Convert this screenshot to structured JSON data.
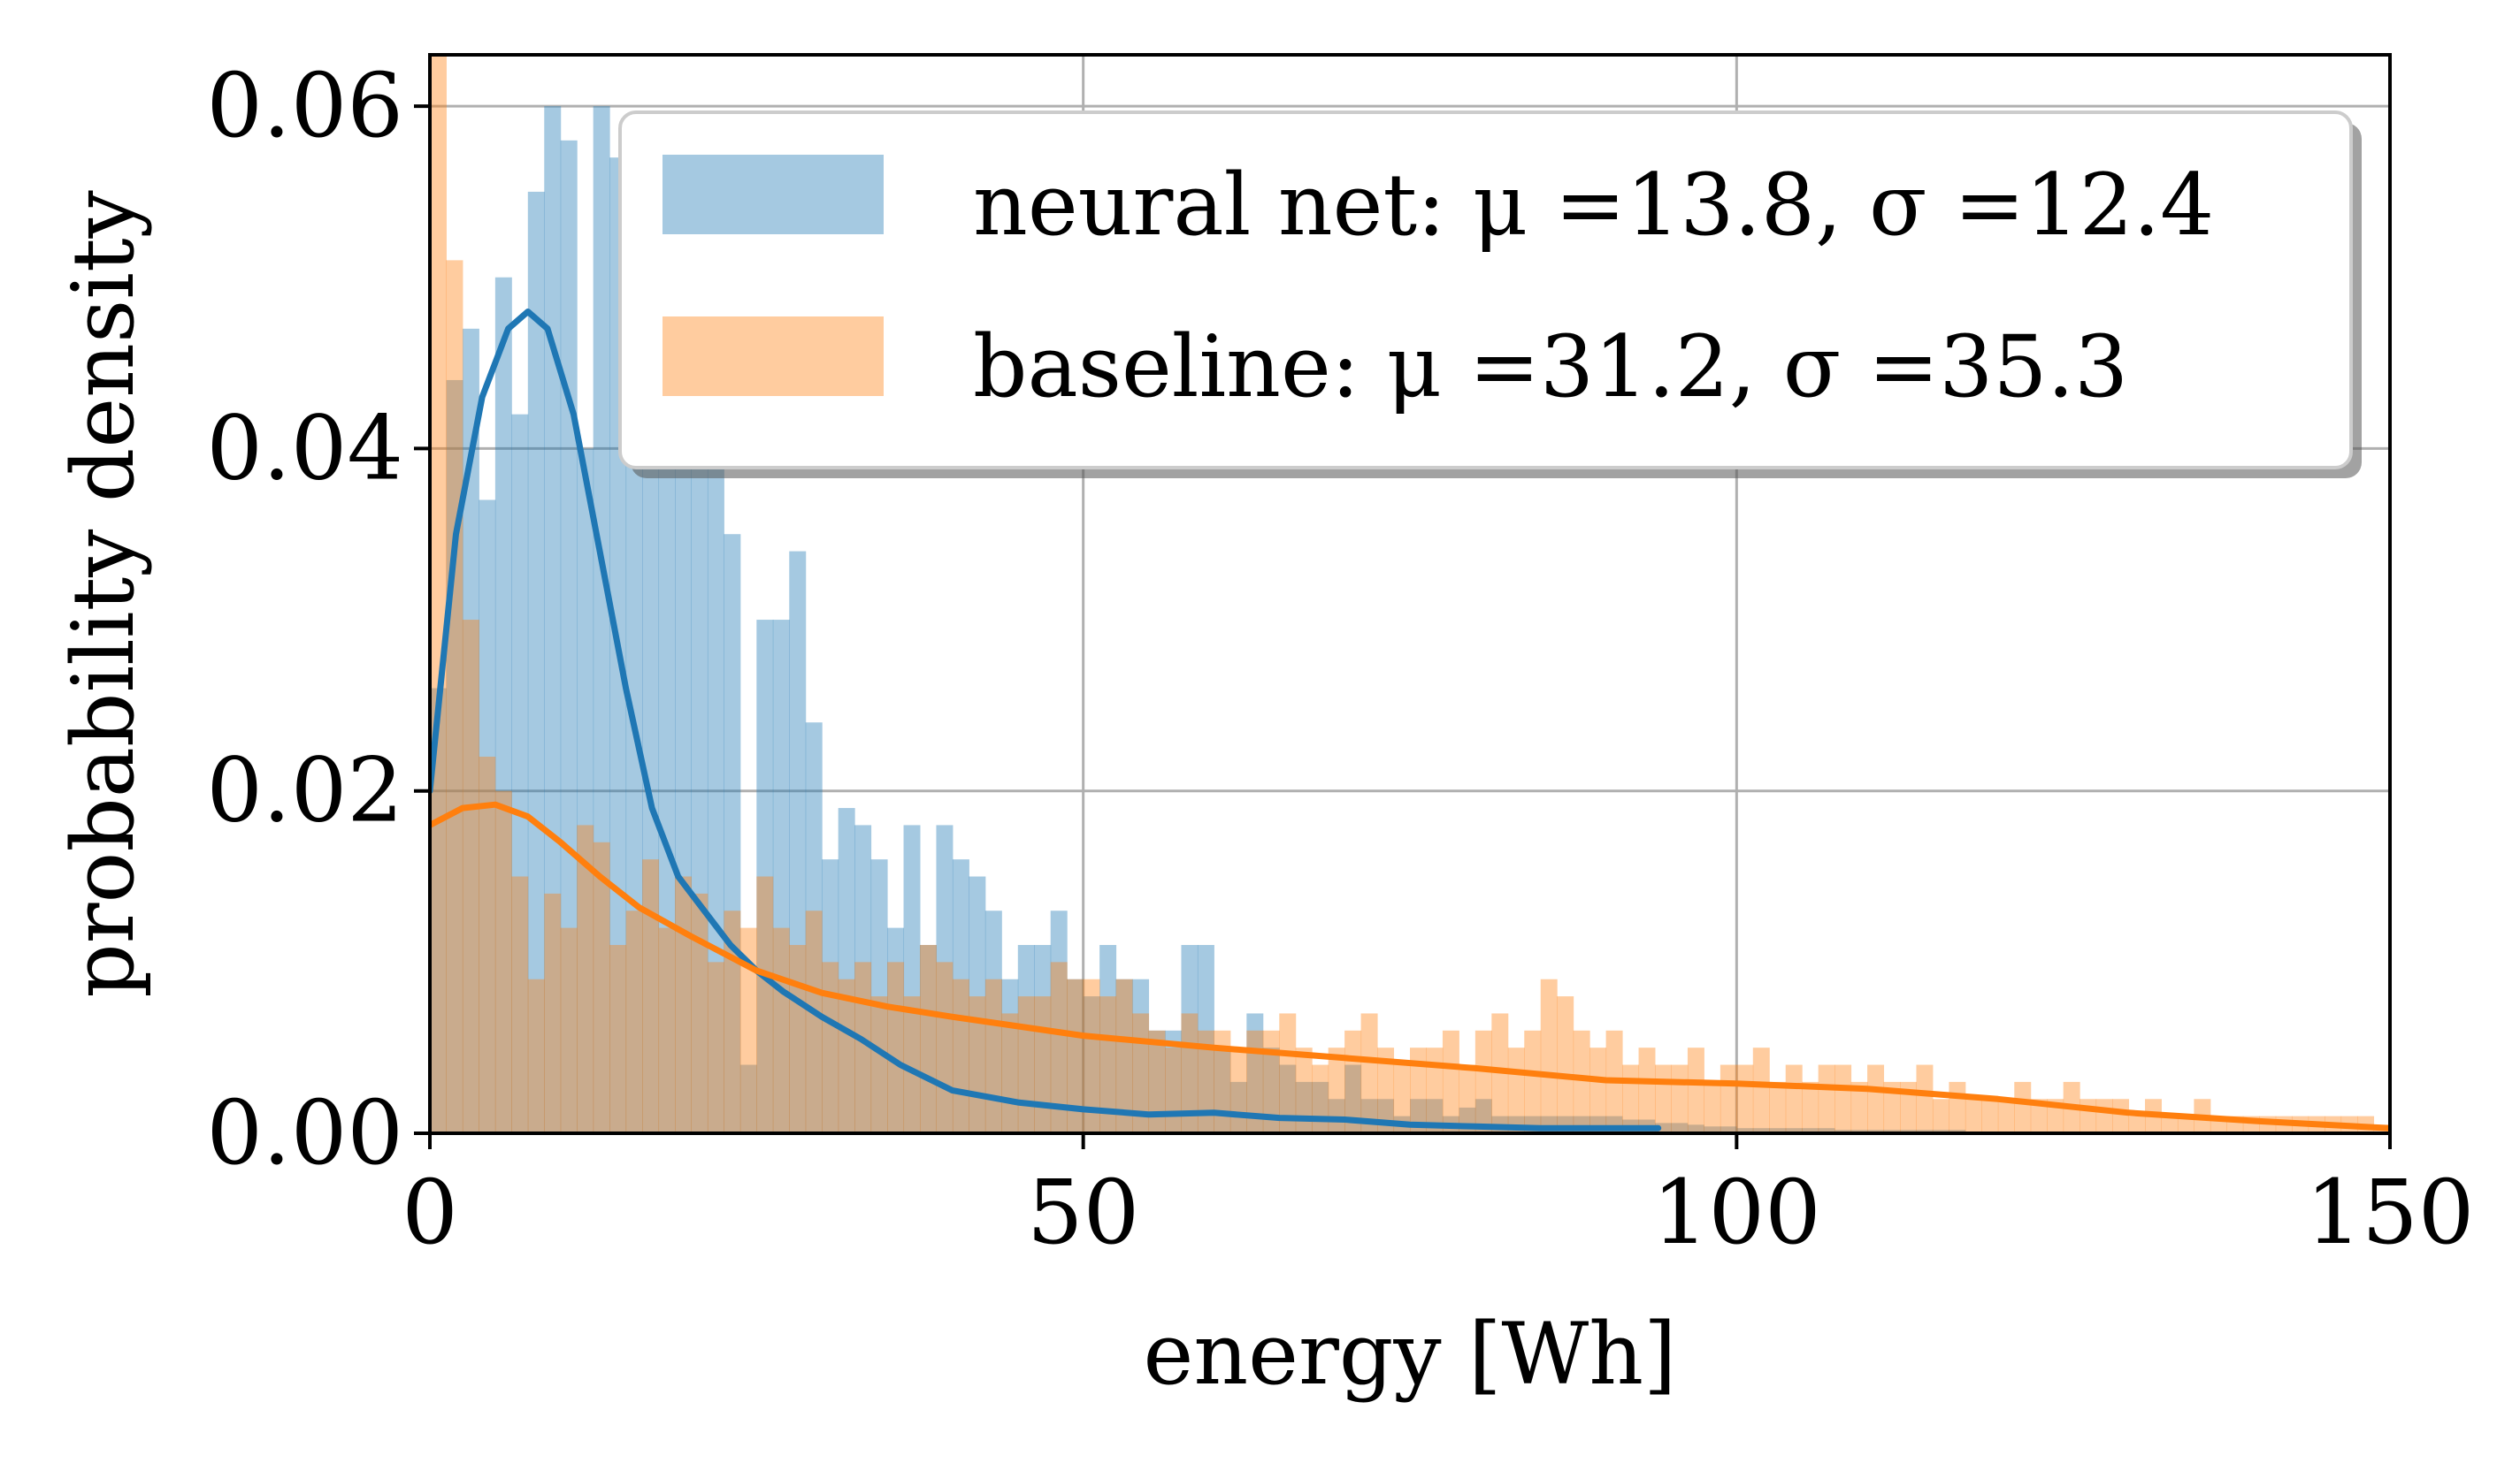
{
  "chart_data": {
    "type": "histogram",
    "xlabel": "energy [Wh]",
    "ylabel": "probability density",
    "xlim": [
      0,
      150
    ],
    "ylim": [
      0,
      0.063
    ],
    "x_ticks": [
      0,
      50,
      100,
      150
    ],
    "x_tick_labels": [
      "0",
      "50",
      "100",
      "150"
    ],
    "y_ticks": [
      0,
      0.02,
      0.04,
      0.06
    ],
    "y_tick_labels": [
      "0.00",
      "0.02",
      "0.04",
      "0.06"
    ],
    "grid": true,
    "legend_position": "top-right",
    "bin_width": 1.25,
    "series": [
      {
        "name": "neural net",
        "legend_label": "neural net: μ =13.8, σ =12.4",
        "mean": 13.8,
        "std": 12.4,
        "color": "#1f77b4",
        "bar_color": "#a6c8e1",
        "hist_densities": [
          0.026,
          0.044,
          0.047,
          0.037,
          0.05,
          0.042,
          0.055,
          0.06,
          0.058,
          0.04,
          0.06,
          0.057,
          0.052,
          0.059,
          0.056,
          0.047,
          0.046,
          0.047,
          0.035,
          0.004,
          0.03,
          0.03,
          0.034,
          0.024,
          0.016,
          0.019,
          0.018,
          0.016,
          0.012,
          0.018,
          0.011,
          0.018,
          0.016,
          0.015,
          0.013,
          0.009,
          0.011,
          0.011,
          0.013,
          0.009,
          0.008,
          0.011,
          0.009,
          0.009,
          0.006,
          0.006,
          0.011,
          0.011,
          0.005,
          0.003,
          0.007,
          0.005,
          0.004,
          0.003,
          0.003,
          0.002,
          0.004,
          0.002,
          0.002,
          0.001,
          0.002,
          0.002,
          0.001,
          0.0015,
          0.002,
          0.001,
          0.001,
          0.001,
          0.001,
          0.001,
          0.001,
          0.001,
          0.001,
          0.0008,
          0.0008,
          0.0006,
          0.0006,
          0.0005,
          0.0004,
          0.0004,
          0.0003,
          0.0003,
          0.0003,
          0.0003,
          0.0003,
          0.0003,
          0.0002,
          0.0002,
          0.0002,
          0.0002,
          0.0002,
          0.0002,
          0.0002,
          0.0002,
          0.0001,
          0.0001,
          0.0001,
          0.0001,
          0.0001,
          0.0001,
          0.0001,
          0.0001,
          0.0001,
          0.0001,
          0.0001,
          0.0001,
          0.0001,
          0.0001,
          0.0001,
          0.0001,
          0.0001,
          0.0001,
          0.0001,
          0.0001,
          0.0001,
          0.0001,
          0.0001,
          0.0001,
          0.0001,
          0.0001,
          0.0001,
          0.0001,
          0.0001,
          0.0001
        ],
        "kde": {
          "x": [
            0,
            2,
            4,
            6,
            7.5,
            9,
            11,
            13,
            15,
            17,
            19,
            21,
            23,
            25,
            27,
            30,
            33,
            36,
            40,
            45,
            50,
            55,
            60,
            65,
            70,
            75,
            80,
            85,
            90,
            94
          ],
          "y": [
            0.02,
            0.035,
            0.043,
            0.047,
            0.048,
            0.047,
            0.042,
            0.034,
            0.026,
            0.019,
            0.015,
            0.013,
            0.011,
            0.0095,
            0.0083,
            0.0068,
            0.0055,
            0.004,
            0.0025,
            0.0018,
            0.0014,
            0.0011,
            0.0012,
            0.0009,
            0.0008,
            0.0005,
            0.0004,
            0.0003,
            0.0003,
            0.0003
          ]
        }
      },
      {
        "name": "baseline",
        "legend_label": "baseline: μ =31.2, σ =35.3",
        "mean": 31.2,
        "std": 35.3,
        "color": "#ff7f0e",
        "bar_color": "#fec596",
        "hist_densities": [
          0.063,
          0.051,
          0.03,
          0.022,
          0.02,
          0.015,
          0.009,
          0.014,
          0.012,
          0.018,
          0.017,
          0.011,
          0.013,
          0.016,
          0.012,
          0.015,
          0.014,
          0.01,
          0.013,
          0.012,
          0.015,
          0.012,
          0.011,
          0.013,
          0.01,
          0.009,
          0.01,
          0.008,
          0.01,
          0.008,
          0.011,
          0.01,
          0.009,
          0.008,
          0.009,
          0.007,
          0.008,
          0.008,
          0.01,
          0.009,
          0.009,
          0.008,
          0.009,
          0.007,
          0.006,
          0.005,
          0.007,
          0.006,
          0.006,
          0.005,
          0.006,
          0.006,
          0.007,
          0.005,
          0.004,
          0.005,
          0.006,
          0.007,
          0.005,
          0.004,
          0.005,
          0.005,
          0.006,
          0.004,
          0.006,
          0.007,
          0.005,
          0.006,
          0.009,
          0.008,
          0.006,
          0.005,
          0.006,
          0.004,
          0.005,
          0.004,
          0.004,
          0.005,
          0.003,
          0.004,
          0.004,
          0.005,
          0.003,
          0.004,
          0.003,
          0.004,
          0.004,
          0.003,
          0.004,
          0.003,
          0.003,
          0.004,
          0.002,
          0.003,
          0.002,
          0.002,
          0.002,
          0.003,
          0.002,
          0.002,
          0.003,
          0.002,
          0.002,
          0.002,
          0.001,
          0.002,
          0.001,
          0.001,
          0.002,
          0.001,
          0.001,
          0.001,
          0.001,
          0.001,
          0.001,
          0.001,
          0.001,
          0.001,
          0.001,
          0.0005,
          0.0005,
          0.0005,
          0.0005,
          0.0005
        ],
        "kde": {
          "x": [
            0,
            2.5,
            5,
            7.5,
            10,
            13,
            16,
            20,
            25,
            30,
            35,
            40,
            50,
            60,
            70,
            80,
            90,
            100,
            110,
            120,
            130,
            140,
            150
          ],
          "y": [
            0.018,
            0.019,
            0.0192,
            0.0185,
            0.017,
            0.015,
            0.0132,
            0.0115,
            0.0095,
            0.0082,
            0.0074,
            0.0068,
            0.0057,
            0.005,
            0.0044,
            0.0038,
            0.0031,
            0.0029,
            0.0026,
            0.002,
            0.0012,
            0.0007,
            0.0003
          ]
        }
      }
    ]
  }
}
